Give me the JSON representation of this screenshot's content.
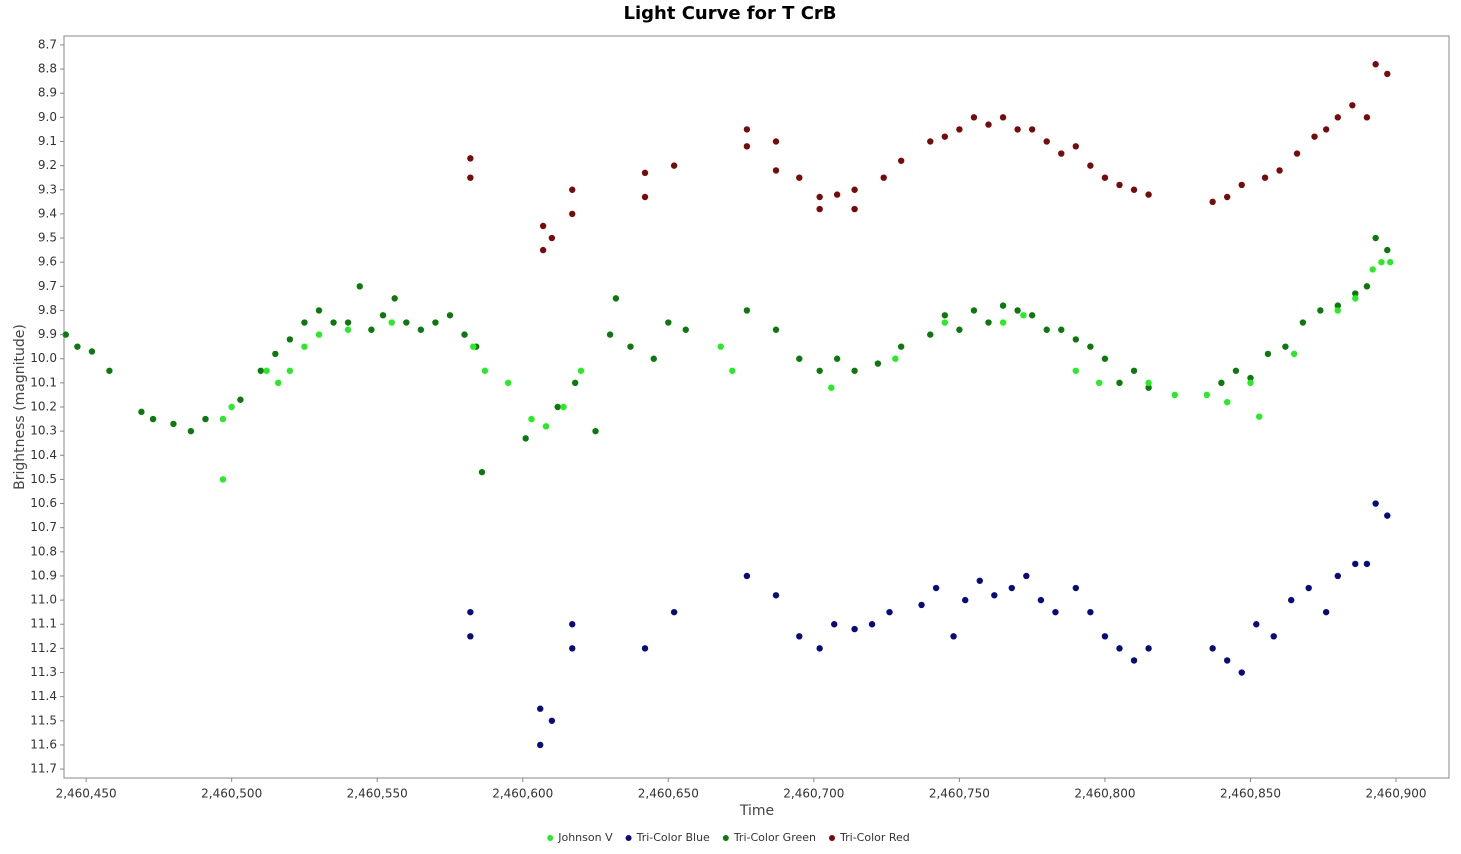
{
  "chart_data": {
    "type": "scatter",
    "title": "Light Curve for T CrB",
    "x_label": "Time",
    "y_label": "Brightness (magnitude)",
    "xlim": [
      2460442.4,
      2460918.2
    ],
    "ylim": [
      8.663,
      11.737
    ],
    "y_inverted": true,
    "legend": "bottom",
    "xticks": [
      {
        "value": 2460450,
        "label": "2,460,450"
      },
      {
        "value": 2460500,
        "label": "2,460,500"
      },
      {
        "value": 2460550,
        "label": "2,460,550"
      },
      {
        "value": 2460600,
        "label": "2,460,600"
      },
      {
        "value": 2460650,
        "label": "2,460,650"
      },
      {
        "value": 2460700,
        "label": "2,460,700"
      },
      {
        "value": 2460750,
        "label": "2,460,750"
      },
      {
        "value": 2460800,
        "label": "2,460,800"
      },
      {
        "value": 2460850,
        "label": "2,460,850"
      },
      {
        "value": 2460900,
        "label": "2,460,900"
      }
    ],
    "yticks": [
      8.7,
      8.8,
      8.9,
      {
        "value": 9,
        "label": "9.0"
      },
      9.1,
      9.2,
      9.3,
      9.4,
      9.5,
      9.6,
      9.7,
      9.8,
      9.9,
      {
        "value": 10,
        "label": "10.0"
      },
      10.1,
      10.2,
      10.3,
      10.4,
      10.5,
      10.6,
      10.7,
      10.8,
      10.9,
      {
        "value": 11,
        "label": "11.0"
      },
      11.1,
      11.2,
      11.3,
      11.4,
      11.5,
      11.6,
      11.7
    ],
    "series": [
      {
        "name": "Johnson V",
        "color": "#22ee22",
        "x": [
          2460497,
          2460497,
          2460500,
          2460512,
          2460516,
          2460520,
          2460525,
          2460530,
          2460540,
          2460555,
          2460583,
          2460587,
          2460595,
          2460603,
          2460608,
          2460614,
          2460620,
          2460668,
          2460672,
          2460706,
          2460728,
          2460745,
          2460765,
          2460772,
          2460790,
          2460798,
          2460815,
          2460824,
          2460835,
          2460842,
          2460850,
          2460853,
          2460865,
          2460880,
          2460886,
          2460892,
          2460895,
          2460898
        ],
        "values": [
          10.25,
          10.5,
          10.2,
          10.05,
          10.1,
          10.05,
          9.95,
          9.9,
          9.88,
          9.85,
          9.95,
          10.05,
          10.1,
          10.25,
          10.28,
          10.2,
          10.05,
          9.95,
          10.05,
          10.12,
          10.0,
          9.85,
          9.85,
          9.82,
          10.05,
          10.1,
          10.1,
          10.15,
          10.15,
          10.18,
          10.1,
          10.24,
          9.98,
          9.8,
          9.75,
          9.63,
          9.6,
          9.6
        ]
      },
      {
        "name": "Tri-Color Blue",
        "color": "#0a0a80",
        "x": [
          2460582,
          2460582,
          2460606,
          2460606,
          2460610,
          2460617,
          2460617,
          2460642,
          2460652,
          2460677,
          2460687,
          2460695,
          2460702,
          2460707,
          2460714,
          2460720,
          2460726,
          2460737,
          2460742,
          2460748,
          2460752,
          2460757,
          2460762,
          2460768,
          2460773,
          2460778,
          2460783,
          2460790,
          2460795,
          2460800,
          2460805,
          2460810,
          2460815,
          2460837,
          2460842,
          2460847,
          2460852,
          2460858,
          2460864,
          2460870,
          2460876,
          2460880,
          2460886,
          2460890,
          2460893,
          2460897
        ],
        "values": [
          11.05,
          11.15,
          11.45,
          11.6,
          11.5,
          11.2,
          11.1,
          11.2,
          11.05,
          10.9,
          10.98,
          11.15,
          11.2,
          11.1,
          11.12,
          11.1,
          11.05,
          11.02,
          10.95,
          11.15,
          11.0,
          10.92,
          10.98,
          10.95,
          10.9,
          11.0,
          11.05,
          10.95,
          11.05,
          11.15,
          11.2,
          11.25,
          11.2,
          11.2,
          11.25,
          11.3,
          11.1,
          11.15,
          11.0,
          10.95,
          11.05,
          10.9,
          10.85,
          10.85,
          10.6,
          10.65
        ]
      },
      {
        "name": "Tri-Color Green",
        "color": "#0a7a0a",
        "x": [
          2460443,
          2460447,
          2460452,
          2460458,
          2460469,
          2460473,
          2460480,
          2460486,
          2460491,
          2460503,
          2460510,
          2460515,
          2460520,
          2460525,
          2460530,
          2460535,
          2460540,
          2460544,
          2460548,
          2460552,
          2460556,
          2460560,
          2460565,
          2460570,
          2460575,
          2460580,
          2460584,
          2460586,
          2460601,
          2460612,
          2460618,
          2460625,
          2460630,
          2460632,
          2460637,
          2460645,
          2460650,
          2460656,
          2460677,
          2460687,
          2460695,
          2460702,
          2460708,
          2460714,
          2460722,
          2460730,
          2460740,
          2460745,
          2460750,
          2460755,
          2460760,
          2460765,
          2460770,
          2460775,
          2460780,
          2460785,
          2460790,
          2460795,
          2460800,
          2460805,
          2460810,
          2460815,
          2460840,
          2460845,
          2460850,
          2460856,
          2460862,
          2460868,
          2460874,
          2460880,
          2460886,
          2460890,
          2460893,
          2460897
        ],
        "values": [
          9.9,
          9.95,
          9.97,
          10.05,
          10.22,
          10.25,
          10.27,
          10.3,
          10.25,
          10.17,
          10.05,
          9.98,
          9.92,
          9.85,
          9.8,
          9.85,
          9.85,
          9.7,
          9.88,
          9.82,
          9.75,
          9.85,
          9.88,
          9.85,
          9.82,
          9.9,
          9.95,
          10.47,
          10.33,
          10.2,
          10.1,
          10.3,
          9.9,
          9.75,
          9.95,
          10.0,
          9.85,
          9.88,
          9.8,
          9.88,
          10.0,
          10.05,
          10.0,
          10.05,
          10.02,
          9.95,
          9.9,
          9.82,
          9.88,
          9.8,
          9.85,
          9.78,
          9.8,
          9.82,
          9.88,
          9.88,
          9.92,
          9.95,
          10.0,
          10.1,
          10.05,
          10.12,
          10.1,
          10.05,
          10.08,
          9.98,
          9.95,
          9.85,
          9.8,
          9.78,
          9.73,
          9.7,
          9.5,
          9.55
        ]
      },
      {
        "name": "Tri-Color Red",
        "color": "#7a0a0a",
        "x": [
          2460582,
          2460582,
          2460607,
          2460607,
          2460610,
          2460617,
          2460617,
          2460642,
          2460642,
          2460652,
          2460677,
          2460677,
          2460687,
          2460687,
          2460695,
          2460702,
          2460702,
          2460708,
          2460714,
          2460714,
          2460724,
          2460730,
          2460740,
          2460745,
          2460750,
          2460755,
          2460760,
          2460765,
          2460770,
          2460775,
          2460780,
          2460785,
          2460790,
          2460795,
          2460800,
          2460805,
          2460810,
          2460815,
          2460837,
          2460842,
          2460847,
          2460855,
          2460860,
          2460866,
          2460872,
          2460876,
          2460880,
          2460885,
          2460890,
          2460893,
          2460897
        ],
        "values": [
          9.17,
          9.25,
          9.45,
          9.55,
          9.5,
          9.3,
          9.4,
          9.23,
          9.33,
          9.2,
          9.05,
          9.12,
          9.1,
          9.22,
          9.25,
          9.33,
          9.38,
          9.32,
          9.3,
          9.38,
          9.25,
          9.18,
          9.1,
          9.08,
          9.05,
          9.0,
          9.03,
          9.0,
          9.05,
          9.05,
          9.1,
          9.15,
          9.12,
          9.2,
          9.25,
          9.28,
          9.3,
          9.32,
          9.35,
          9.33,
          9.28,
          9.25,
          9.22,
          9.15,
          9.08,
          9.05,
          9.0,
          8.95,
          9.0,
          8.78,
          8.82
        ]
      }
    ]
  }
}
